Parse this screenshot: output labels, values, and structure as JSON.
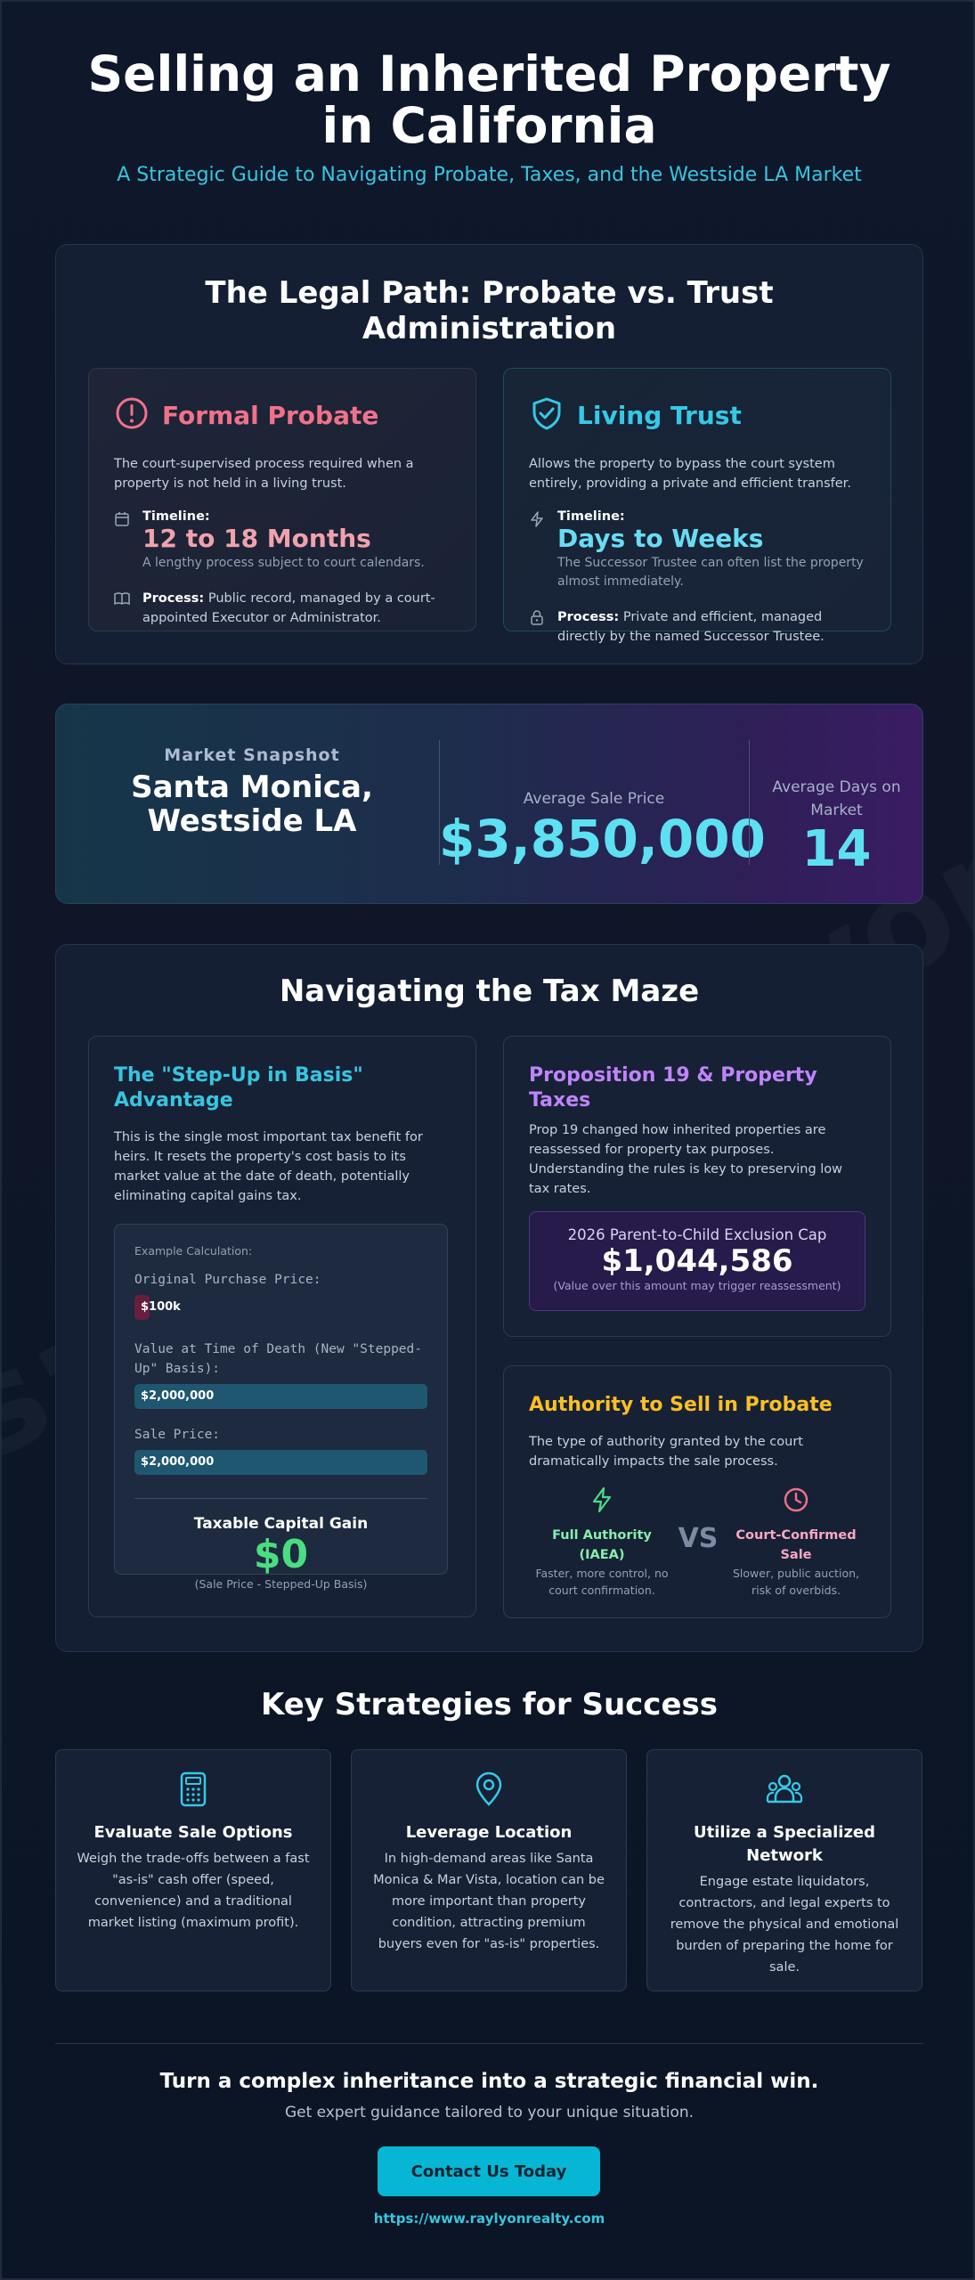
{
  "header": {
    "title": "Selling an Inherited Property in California",
    "subtitle": "A Strategic Guide to Navigating Probate, Taxes, and the Westside LA Market"
  },
  "watermark": "s://www.raylyonrealty",
  "legal": {
    "title": "The Legal Path: Probate vs. Trust Administration",
    "probate": {
      "title": "Formal Probate",
      "desc": "The court-supervised process required when a property is not held in a living trust.",
      "timeline_label": "Timeline:",
      "timeline_value": "12 to 18 Months",
      "timeline_note": "A lengthy process subject to court calendars.",
      "process_label": "Process:",
      "process_text": " Public record, managed by a court-appointed Executor or Administrator."
    },
    "trust": {
      "title": "Living Trust",
      "desc": "Allows the property to bypass the court system entirely, providing a private and efficient transfer.",
      "timeline_label": "Timeline:",
      "timeline_value": "Days to Weeks",
      "timeline_note": "The Successor Trustee can often list the property almost immediately.",
      "process_label": "Process:",
      "process_text": " Private and efficient, managed directly by the named Successor Trustee."
    }
  },
  "market": {
    "label": "Market Snapshot",
    "location": "Santa Monica, Westside LA",
    "price_label": "Average Sale Price",
    "price_value": "$3,850,000",
    "days_label": "Average Days on Market",
    "days_value": "14"
  },
  "tax": {
    "title": "Navigating the Tax Maze",
    "stepup": {
      "title": "The \"Step-Up in Basis\" Advantage",
      "desc": "This is the single most important tax benefit for heirs. It resets the property's cost basis to its market value at the date of death, potentially eliminating capital gains tax.",
      "example_label": "Example Calculation:",
      "orig_label": "Original Purchase Price:",
      "orig_value": "$100k",
      "orig_fraction": 0.05,
      "death_label": "Value at Time of Death (New \"Stepped-Up\" Basis):",
      "death_value": "$2,000,000",
      "sale_label": "Sale Price:",
      "sale_value": "$2,000,000",
      "gain_label": "Taxable Capital Gain",
      "gain_value": "$0",
      "gain_note": "(Sale Price - Stepped-Up Basis)"
    },
    "prop19": {
      "title": "Proposition 19 & Property Taxes",
      "desc": "Prop 19 changed how inherited properties are reassessed for property tax purposes. Understanding the rules is key to preserving low tax rates.",
      "cap_label": "2026 Parent-to-Child Exclusion Cap",
      "cap_value": "$1,044,586",
      "cap_note": "(Value over this amount may trigger reassessment)"
    },
    "authority": {
      "title": "Authority to Sell in Probate",
      "desc": "The type of authority granted by the court dramatically impacts the sale process.",
      "full_title": "Full Authority (IAEA)",
      "full_desc": "Faster, more control, no court confirmation.",
      "vs": "VS",
      "court_title": "Court-Confirmed Sale",
      "court_desc": "Slower, public auction, risk of overbids."
    }
  },
  "strategies": {
    "title": "Key Strategies for Success",
    "items": [
      {
        "title": "Evaluate Sale Options",
        "desc": "Weigh the trade-offs between a fast \"as-is\" cash offer (speed, convenience) and a traditional market listing (maximum profit)."
      },
      {
        "title": "Leverage Location",
        "desc": "In high-demand areas like Santa Monica & Mar Vista, location can be more important than property condition, attracting premium buyers even for \"as-is\" properties."
      },
      {
        "title": "Utilize a Specialized Network",
        "desc": "Engage estate liquidators, contractors, and legal experts to remove the physical and emotional burden of preparing the home for sale."
      }
    ]
  },
  "cta": {
    "title": "Turn a complex inheritance into a strategic financial win.",
    "subtitle": "Get expert guidance tailored to your unique situation.",
    "button": "Contact Us Today",
    "url": "https://www.raylyonrealty.com"
  },
  "colors": {
    "background": "#0f172a",
    "accent_cyan": "#38c5df",
    "probate_pink": "#f0728a",
    "gain_green": "#4ade80",
    "prop19_purple": "#c084fc",
    "authority_amber": "#fbbf24"
  }
}
